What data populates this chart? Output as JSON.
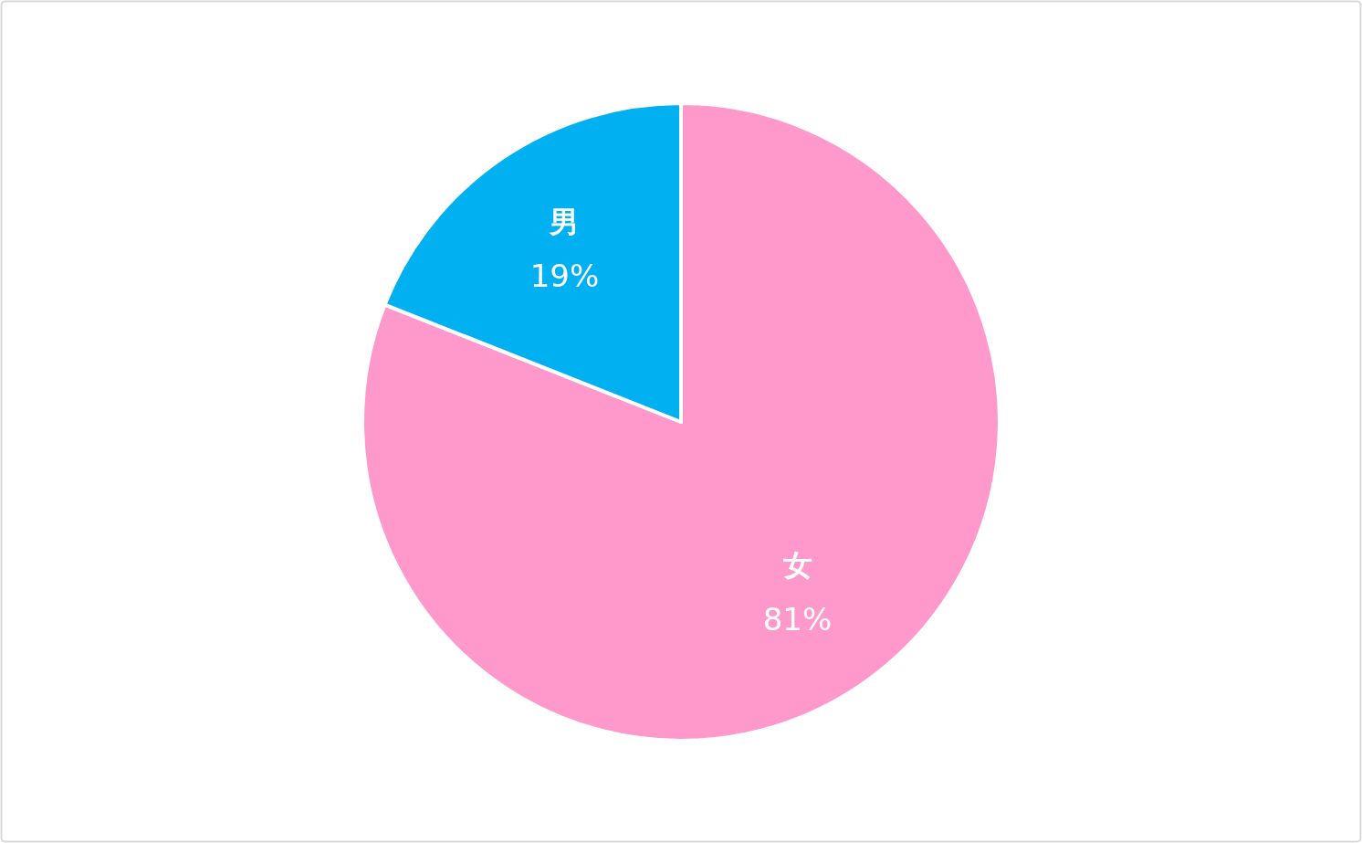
{
  "chart_data": {
    "type": "pie",
    "categories": [
      "女",
      "男"
    ],
    "values": [
      81,
      19
    ],
    "value_labels": [
      "81%",
      "19%"
    ],
    "colors": [
      "#ff99cc",
      "#00b0f0"
    ]
  }
}
